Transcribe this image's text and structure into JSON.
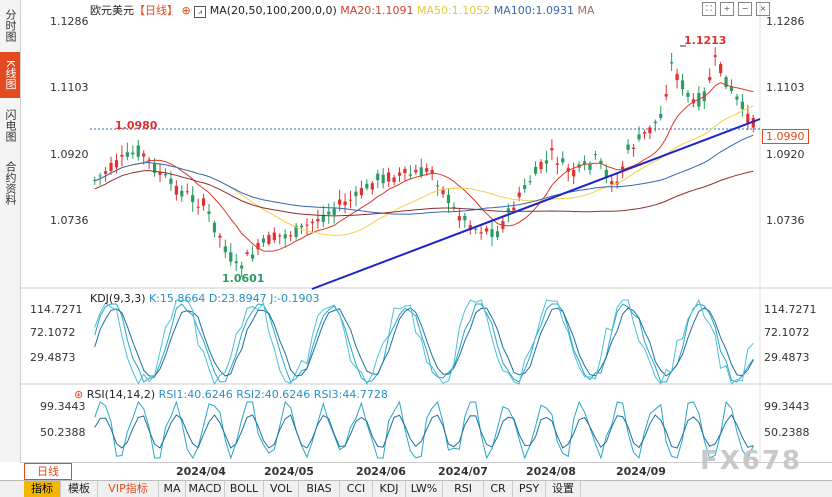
{
  "left_nav": [
    {
      "label": "分时图",
      "active": false
    },
    {
      "label": "K线图",
      "active": true
    },
    {
      "label": "闪电图",
      "active": false
    },
    {
      "label": "合约资料",
      "active": false
    }
  ],
  "main_chart": {
    "symbol": "欧元美元",
    "period_tag": "【日线】",
    "ma_label": "MA(20,50,100,200,0,0)",
    "ma20": "MA20:1.1091",
    "ma50": "MA50:1.1052",
    "ma100": "MA100:1.0931",
    "ma_extra": "MA",
    "y_ticks": [
      "1.1286",
      "1.1103",
      "1.0920",
      "1.0736"
    ],
    "ref_level": "1.0980",
    "high_label": "1.1213",
    "low_label": "1.0601",
    "current_price": "1.0990",
    "colors": {
      "up": "#e0312f",
      "down": "#2b9a63",
      "ma20": "#d93a2a",
      "ma50": "#f2d04a",
      "ma100": "#3466b8",
      "ma200": "#8b2f2f",
      "trend": "#1b25c8"
    }
  },
  "kdj": {
    "label": "KDJ(9,3,3)",
    "k": "K:15.8664",
    "d": "D:23.8947",
    "j": "J:-0.1903",
    "y_ticks": [
      "114.7271",
      "72.1072",
      "29.4873"
    ]
  },
  "rsi": {
    "label": "RSI(14,14,2)",
    "rsi1": "RSI1:40.6246",
    "rsi2": "RSI2:40.6246",
    "rsi3": "RSI3:44.7728",
    "y_ticks": [
      "99.3443",
      "50.2388"
    ]
  },
  "date_axis": [
    "2024/04",
    "2024/05",
    "2024/06",
    "2024/07",
    "2024/08",
    "2024/09"
  ],
  "period_button": "日线",
  "bottom_tabs": [
    "指标",
    "模板",
    "VIP指标",
    "MA",
    "MACD",
    "BOLL",
    "VOL",
    "BIAS",
    "CCI",
    "KDJ",
    "LW%",
    "RSI",
    "CR",
    "PSY",
    "设置"
  ],
  "watermark": "FX678"
}
